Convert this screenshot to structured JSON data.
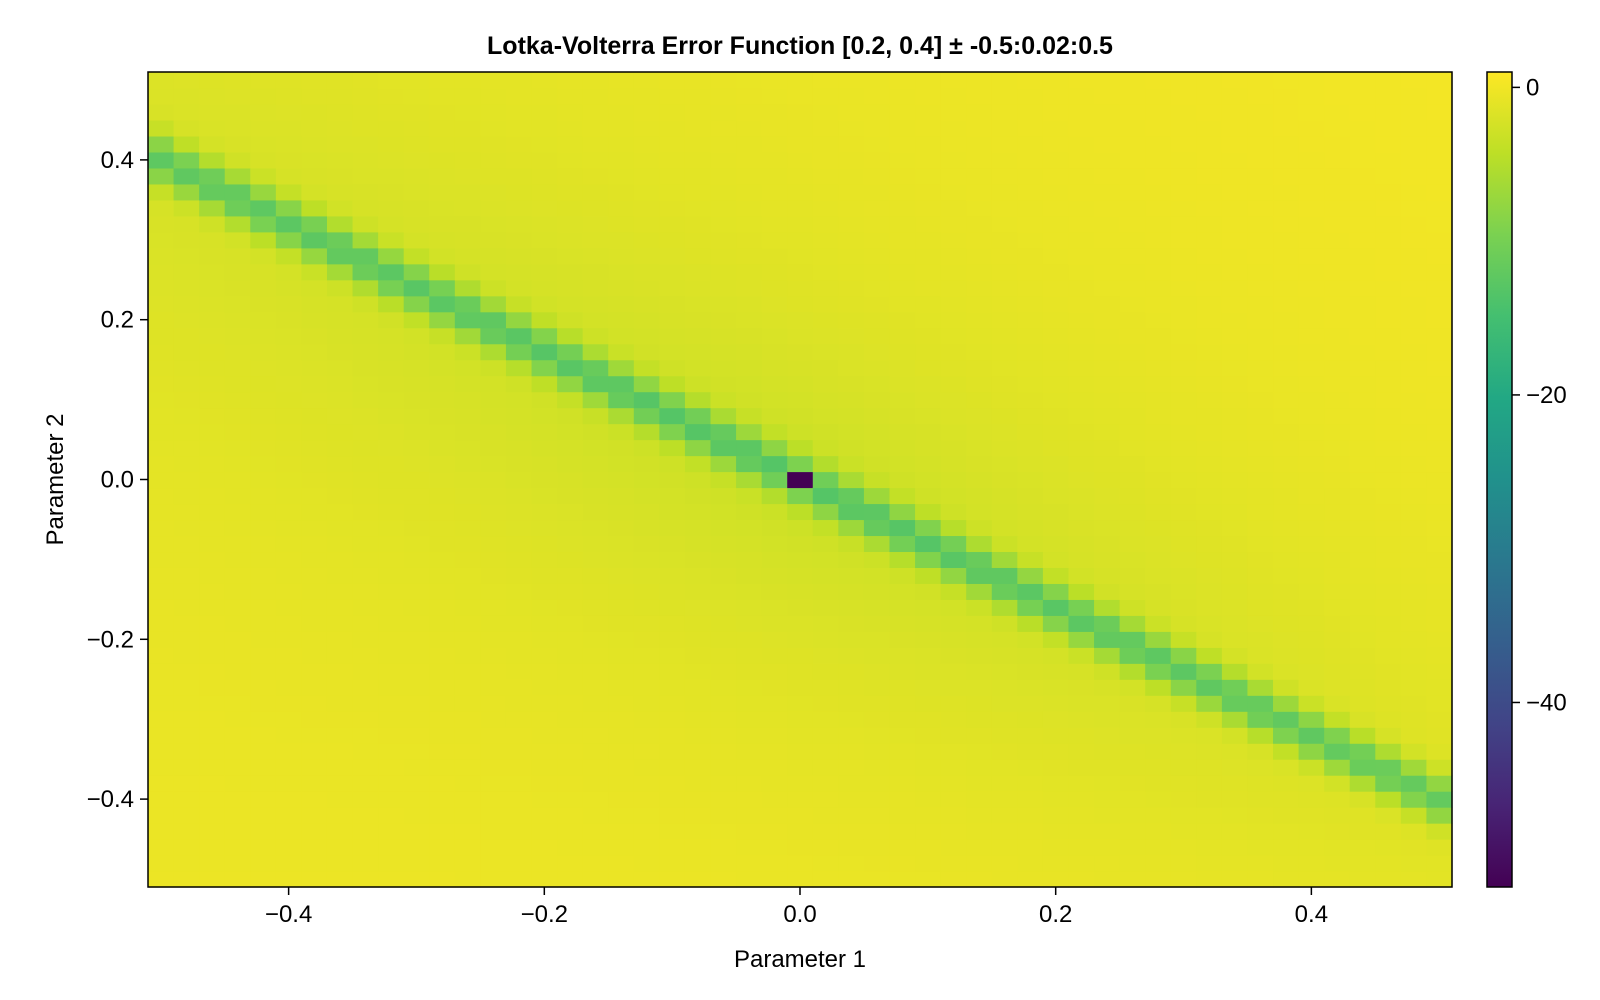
{
  "chart_data": {
    "type": "heatmap",
    "title": "Lotka-Volterra Error Function [0.2, 0.4] ± -0.5:0.02:0.5",
    "xlabel": "Parameter 1",
    "ylabel": "Parameter 2",
    "x_range": [
      -0.5,
      0.5
    ],
    "y_range": [
      -0.5,
      0.5
    ],
    "step": 0.02,
    "xlim": [
      -0.51,
      0.51
    ],
    "ylim": [
      -0.51,
      0.51
    ],
    "x_ticks": [
      -0.4,
      -0.2,
      0.0,
      0.2,
      0.4
    ],
    "x_tick_labels": [
      "−0.4",
      "−0.2",
      "0.0",
      "0.2",
      "0.4"
    ],
    "y_ticks": [
      -0.4,
      -0.2,
      0.0,
      0.2,
      0.4
    ],
    "y_tick_labels": [
      "−0.4",
      "−0.2",
      "0.0",
      "0.2",
      "0.4"
    ],
    "colorbar": {
      "range": [
        -52,
        1
      ],
      "ticks": [
        0,
        -20,
        -40
      ],
      "tick_labels": [
        "0",
        "−20",
        "−40"
      ],
      "colormap": "viridis"
    },
    "value_model": {
      "description": "approximate reading of cell colours",
      "baseline": 0,
      "valley_slope": 0.8,
      "valley_depth": -10,
      "valley_width": 0.02,
      "minimum": {
        "x": 0.0,
        "y": 0.0,
        "value": -52
      }
    }
  }
}
